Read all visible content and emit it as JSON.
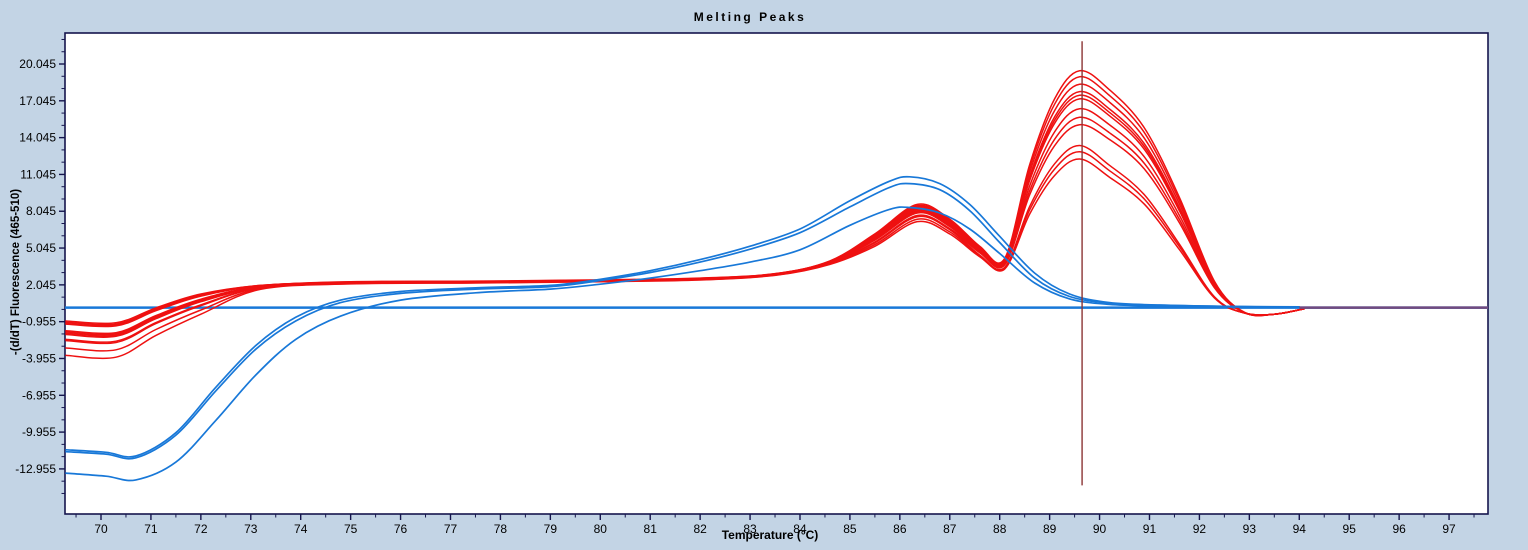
{
  "title": "Melting Peaks",
  "x_axis": {
    "label": "Temperature (°C)",
    "range": [
      69.279,
      97.78
    ],
    "major_ticks": [
      70,
      71,
      72,
      73,
      74,
      75,
      76,
      77,
      78,
      79,
      80,
      81,
      82,
      83,
      84,
      85,
      86,
      87,
      88,
      89,
      90,
      91,
      92,
      93,
      94,
      95,
      96,
      97
    ],
    "minor_tick_step": 0.5
  },
  "y_axis": {
    "label": "-(d/dT) Fluorescence (465-510)",
    "range": [
      -16.63,
      22.572
    ],
    "major_tick_values": [
      20.045,
      17.045,
      14.045,
      11.045,
      8.045,
      5.045,
      2.045,
      -0.955,
      -3.955,
      -6.955,
      -9.955,
      -12.955
    ],
    "major_tick_labels": [
      "20.045",
      "17.045",
      "14.045",
      "11.045",
      "8.045",
      "5.045",
      "2.045",
      "-0.955",
      "-3.955",
      "-6.955",
      "-9.955",
      "-12.955"
    ],
    "minor_tick_step": 1
  },
  "colors": {
    "background": "#c3d4e5",
    "plot_background": "#ffffff",
    "border": "#15154d",
    "red_curve": "#ee1111",
    "blue_curve": "#1878d8",
    "baseline_blue": "#1878d8",
    "baseline_purple": "#734a7e",
    "threshold_line": "#8b3434"
  },
  "chart_data": {
    "type": "line",
    "title": "Melting Peaks",
    "xlabel": "Temperature (°C)",
    "ylabel": "-(d/dT) Fluorescence (465-510)",
    "xlim": [
      69.279,
      97.78
    ],
    "ylim": [
      -16.63,
      22.572
    ],
    "grid": false,
    "legend": "none",
    "threshold_marker": {
      "x": 89.65,
      "v_top": 21.9,
      "v_bottom": -14.3
    },
    "baseline": {
      "t": [
        69.28,
        97.78
      ],
      "v": [
        0.19,
        0.19
      ]
    },
    "baseline_overlap_segment": {
      "t": [
        94.0,
        97.78
      ],
      "v": [
        0.19,
        0.19
      ]
    },
    "t_red": [
      69.3,
      70.3,
      71.1,
      72.0,
      73.2,
      75.0,
      77.5,
      80.0,
      82.0,
      83.5,
      84.6,
      85.5,
      86.35,
      87.0,
      87.6,
      88.1,
      88.6,
      89.1,
      89.6,
      90.2,
      90.9,
      91.6,
      92.3,
      92.9,
      93.5,
      94.1
    ],
    "t_blue": [
      69.3,
      70.1,
      70.7,
      71.5,
      72.3,
      73.1,
      73.9,
      74.8,
      76.0,
      77.5,
      79.0,
      80.0,
      81.0,
      82.0,
      83.0,
      84.0,
      85.0,
      85.8,
      86.2,
      86.8,
      87.4,
      88.0,
      88.7,
      89.4,
      90.2,
      91.2,
      92.5,
      94.0
    ],
    "series": [
      {
        "name": "red-1",
        "group": "red",
        "v": [
          -0.9,
          -1.05,
          0.17,
          1.3,
          2.0,
          2.3,
          2.35,
          2.45,
          2.6,
          2.96,
          4.0,
          6.2,
          8.6,
          7.4,
          5.2,
          4.2,
          11.85,
          17.2,
          19.5,
          17.94,
          14.82,
          9.17,
          2.34,
          -0.2,
          -0.35,
          0.1
        ]
      },
      {
        "name": "red-2",
        "group": "red",
        "v": [
          -1.0,
          -1.15,
          0.07,
          1.24,
          2.0,
          2.28,
          2.33,
          2.43,
          2.58,
          2.95,
          3.97,
          6.12,
          8.5,
          7.31,
          5.14,
          4.14,
          11.57,
          16.77,
          19.0,
          17.48,
          14.44,
          8.93,
          2.28,
          -0.2,
          -0.35,
          0.1
        ]
      },
      {
        "name": "red-3",
        "group": "red",
        "v": [
          -1.1,
          -1.25,
          -0.02,
          1.17,
          1.98,
          2.27,
          2.32,
          2.42,
          2.56,
          2.94,
          3.95,
          6.05,
          8.4,
          7.22,
          5.07,
          4.07,
          11.24,
          16.25,
          18.4,
          16.93,
          13.98,
          8.65,
          2.21,
          -0.2,
          -0.35,
          0.1
        ]
      },
      {
        "name": "red-4",
        "group": "red",
        "v": [
          -1.15,
          -1.3,
          -0.06,
          1.13,
          1.97,
          2.26,
          2.31,
          2.41,
          2.55,
          2.93,
          3.93,
          5.98,
          8.3,
          7.13,
          5.0,
          4.0,
          10.9,
          15.73,
          17.8,
          16.38,
          13.53,
          8.37,
          2.14,
          -0.2,
          -0.35,
          0.1
        ]
      },
      {
        "name": "red-5",
        "group": "red",
        "v": [
          -1.7,
          -1.85,
          -0.46,
          0.88,
          1.92,
          2.24,
          2.3,
          2.4,
          2.54,
          2.92,
          3.9,
          5.9,
          8.2,
          7.05,
          4.96,
          3.96,
          10.73,
          15.47,
          17.5,
          16.1,
          13.3,
          8.23,
          2.1,
          -0.2,
          -0.35,
          0.1
        ]
      },
      {
        "name": "red-6",
        "group": "red",
        "v": [
          -1.8,
          -1.95,
          -0.54,
          0.81,
          1.9,
          2.23,
          2.29,
          2.39,
          2.53,
          2.91,
          3.89,
          5.83,
          8.1,
          6.96,
          4.92,
          3.92,
          10.56,
          15.21,
          17.2,
          15.82,
          13.07,
          8.08,
          2.06,
          -0.2,
          -0.35,
          0.1
        ]
      },
      {
        "name": "red-7",
        "group": "red",
        "v": [
          -1.9,
          -2.05,
          -0.63,
          0.74,
          1.88,
          2.22,
          2.28,
          2.38,
          2.52,
          2.9,
          3.87,
          5.76,
          8.0,
          6.88,
          4.83,
          3.83,
          10.12,
          14.51,
          16.4,
          15.09,
          12.46,
          7.71,
          1.97,
          -0.2,
          -0.35,
          0.1
        ]
      },
      {
        "name": "red-8",
        "group": "red",
        "v": [
          -2.0,
          -2.15,
          -0.71,
          0.67,
          1.86,
          2.21,
          2.27,
          2.37,
          2.51,
          2.89,
          3.85,
          5.69,
          7.9,
          6.79,
          4.74,
          3.74,
          9.72,
          13.91,
          15.7,
          14.44,
          11.93,
          7.38,
          1.88,
          -0.2,
          -0.35,
          0.1
        ]
      },
      {
        "name": "red-9",
        "group": "red",
        "v": [
          -2.4,
          -2.55,
          -1.03,
          0.42,
          1.82,
          2.19,
          2.25,
          2.35,
          2.49,
          2.87,
          3.81,
          5.54,
          7.7,
          6.62,
          4.67,
          3.67,
          9.39,
          13.39,
          15.1,
          13.89,
          11.48,
          7.1,
          1.81,
          -0.2,
          -0.35,
          0.1
        ]
      },
      {
        "name": "red-10",
        "group": "red",
        "v": [
          -2.5,
          -2.65,
          -1.11,
          0.35,
          1.8,
          2.18,
          2.24,
          2.34,
          2.48,
          2.86,
          3.79,
          5.47,
          7.6,
          6.54,
          4.47,
          3.47,
          8.44,
          11.91,
          13.4,
          11.79,
          9.38,
          5.36,
          1.07,
          -0.25,
          -0.35,
          0.1
        ]
      },
      {
        "name": "red-11",
        "group": "red",
        "v": [
          -3.1,
          -3.25,
          -1.59,
          0.0,
          1.74,
          2.15,
          2.22,
          2.32,
          2.46,
          2.84,
          3.75,
          5.33,
          7.4,
          6.36,
          4.41,
          3.41,
          8.16,
          11.48,
          12.9,
          11.35,
          9.03,
          5.16,
          1.03,
          -0.25,
          -0.35,
          0.1
        ]
      },
      {
        "name": "red-12",
        "group": "red",
        "v": [
          -3.7,
          -3.85,
          -2.07,
          -0.35,
          1.68,
          2.12,
          2.2,
          2.3,
          2.44,
          2.82,
          3.71,
          5.19,
          7.2,
          6.19,
          4.34,
          3.34,
          7.82,
          10.96,
          12.3,
          10.82,
          8.61,
          4.92,
          0.98,
          -0.25,
          -0.35,
          0.1
        ]
      },
      {
        "name": "blue-1",
        "group": "blue",
        "v": [
          -11.4,
          -11.6,
          -11.9,
          -10.0,
          -6.3,
          -2.9,
          -0.6,
          0.8,
          1.5,
          1.8,
          2.0,
          2.5,
          3.2,
          4.1,
          5.2,
          6.6,
          8.9,
          10.5,
          10.85,
          10.3,
          8.6,
          6.0,
          3.0,
          1.3,
          0.6,
          0.4,
          0.3,
          0.25
        ]
      },
      {
        "name": "blue-2",
        "group": "blue",
        "v": [
          -11.55,
          -11.75,
          -12.05,
          -10.2,
          -6.6,
          -3.2,
          -0.9,
          0.6,
          1.35,
          1.7,
          1.9,
          2.4,
          3.05,
          3.9,
          4.95,
          6.3,
          8.4,
          10.0,
          10.3,
          9.8,
          8.1,
          5.5,
          2.6,
          1.1,
          0.55,
          0.38,
          0.28,
          0.22
        ]
      },
      {
        "name": "blue-3",
        "group": "blue",
        "v": [
          -13.3,
          -13.55,
          -13.85,
          -12.4,
          -9.0,
          -5.3,
          -2.4,
          -0.5,
          0.8,
          1.4,
          1.7,
          2.1,
          2.6,
          3.2,
          3.9,
          4.9,
          6.9,
          8.2,
          8.35,
          7.9,
          6.6,
          4.6,
          2.2,
          0.9,
          0.45,
          0.32,
          0.25,
          0.2
        ]
      }
    ]
  }
}
